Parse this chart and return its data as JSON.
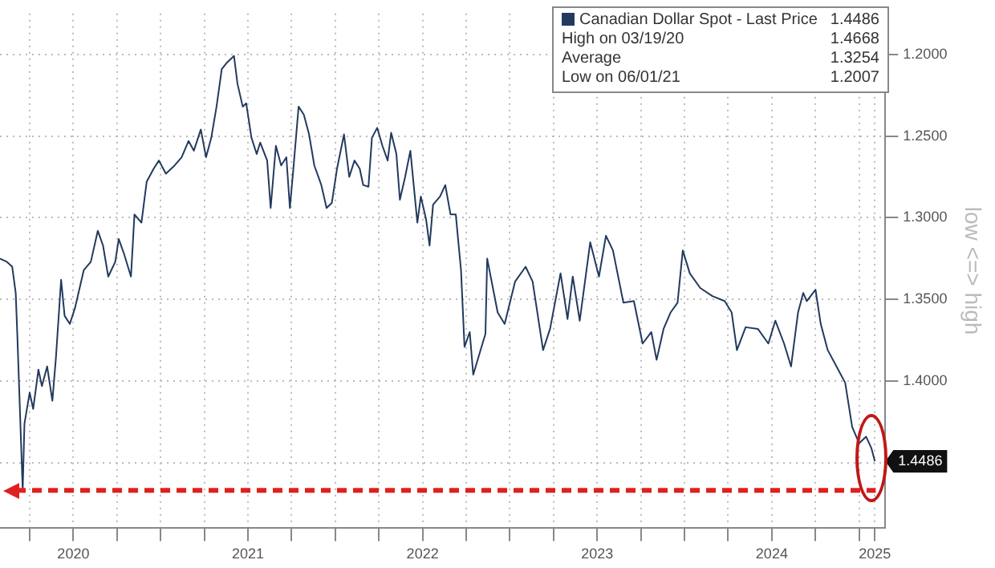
{
  "chart_data": {
    "type": "line",
    "ylabel": "low <=> high",
    "legend": "top right",
    "grid": true,
    "marker": "none",
    "line_style": "solid",
    "x": [
      2020.08,
      2020.12,
      2020.15,
      2020.17,
      2020.18,
      2020.21,
      2020.22,
      2020.25,
      2020.27,
      2020.3,
      2020.32,
      2020.35,
      2020.38,
      2020.4,
      2020.43,
      2020.45,
      2020.48,
      2020.51,
      2020.56,
      2020.6,
      2020.64,
      2020.67,
      2020.7,
      2020.74,
      2020.76,
      2020.79,
      2020.83,
      2020.85,
      2020.89,
      2020.92,
      2020.96,
      2020.99,
      2021.03,
      2021.08,
      2021.12,
      2021.16,
      2021.19,
      2021.23,
      2021.26,
      2021.29,
      2021.32,
      2021.35,
      2021.38,
      2021.42,
      2021.44,
      2021.47,
      2021.49,
      2021.52,
      2021.55,
      2021.57,
      2021.61,
      2021.63,
      2021.66,
      2021.69,
      2021.72,
      2021.74,
      2021.76,
      2021.79,
      2021.82,
      2021.85,
      2021.88,
      2021.92,
      2021.95,
      2021.98,
      2022.01,
      2022.05,
      2022.08,
      2022.11,
      2022.14,
      2022.16,
      2022.19,
      2022.21,
      2022.24,
      2022.27,
      2022.3,
      2022.32,
      2022.35,
      2022.37,
      2022.4,
      2022.43,
      2022.47,
      2022.49,
      2022.52,
      2022.54,
      2022.56,
      2022.6,
      2022.63,
      2022.66,
      2022.69,
      2022.72,
      2022.74,
      2022.77,
      2022.79,
      2022.86,
      2022.87,
      2022.93,
      2022.97,
      2023.03,
      2023.09,
      2023.13,
      2023.19,
      2023.23,
      2023.29,
      2023.33,
      2023.36,
      2023.4,
      2023.46,
      2023.51,
      2023.55,
      2023.59,
      2023.65,
      2023.71,
      2023.76,
      2023.81,
      2023.84,
      2023.88,
      2023.92,
      2023.96,
      2023.99,
      2024.03,
      2024.09,
      2024.16,
      2024.23,
      2024.27,
      2024.3,
      2024.35,
      2024.42,
      2024.48,
      2024.52,
      2024.57,
      2024.61,
      2024.65,
      2024.68,
      2024.7,
      2024.75,
      2024.78,
      2024.82,
      2024.88,
      2024.92,
      2024.96,
      2025.0,
      2025.04,
      2025.07,
      2025.09
    ],
    "series": [
      {
        "name": "Canadian Dollar Spot - Last Price",
        "color": "#233a5e",
        "values": [
          1.325,
          1.327,
          1.33,
          1.346,
          1.374,
          1.467,
          1.426,
          1.407,
          1.417,
          1.393,
          1.403,
          1.391,
          1.412,
          1.386,
          1.338,
          1.36,
          1.365,
          1.355,
          1.332,
          1.327,
          1.308,
          1.317,
          1.336,
          1.327,
          1.313,
          1.322,
          1.336,
          1.298,
          1.303,
          1.278,
          1.27,
          1.265,
          1.273,
          1.268,
          1.263,
          1.253,
          1.259,
          1.246,
          1.263,
          1.251,
          1.232,
          1.209,
          1.205,
          1.201,
          1.218,
          1.232,
          1.23,
          1.251,
          1.261,
          1.254,
          1.265,
          1.294,
          1.256,
          1.268,
          1.263,
          1.294,
          1.27,
          1.232,
          1.237,
          1.249,
          1.268,
          1.28,
          1.294,
          1.291,
          1.27,
          1.249,
          1.275,
          1.265,
          1.27,
          1.28,
          1.281,
          1.251,
          1.245,
          1.256,
          1.265,
          1.248,
          1.261,
          1.289,
          1.275,
          1.259,
          1.303,
          1.287,
          1.301,
          1.317,
          1.292,
          1.287,
          1.28,
          1.298,
          1.298,
          1.332,
          1.379,
          1.37,
          1.396,
          1.371,
          1.325,
          1.358,
          1.365,
          1.339,
          1.33,
          1.339,
          1.381,
          1.368,
          1.334,
          1.362,
          1.336,
          1.363,
          1.315,
          1.336,
          1.311,
          1.32,
          1.352,
          1.351,
          1.377,
          1.37,
          1.387,
          1.368,
          1.358,
          1.352,
          1.32,
          1.334,
          1.343,
          1.348,
          1.351,
          1.358,
          1.381,
          1.367,
          1.368,
          1.377,
          1.363,
          1.377,
          1.391,
          1.358,
          1.346,
          1.351,
          1.344,
          1.365,
          1.381,
          1.393,
          1.401,
          1.428,
          1.438,
          1.434,
          1.441,
          1.449
        ]
      }
    ],
    "xlim": [
      2020.08,
      2025.15
    ],
    "xticks": [
      {
        "value": 2020.25,
        "label": null
      },
      {
        "value": 2020.5,
        "label": "2020"
      },
      {
        "value": 2020.75,
        "label": null
      },
      {
        "value": 2021,
        "label": null
      },
      {
        "value": 2021.25,
        "label": null
      },
      {
        "value": 2021.5,
        "label": "2021"
      },
      {
        "value": 2021.75,
        "label": null
      },
      {
        "value": 2022,
        "label": null
      },
      {
        "value": 2022.25,
        "label": null
      },
      {
        "value": 2022.5,
        "label": "2022"
      },
      {
        "value": 2022.75,
        "label": null
      },
      {
        "value": 2023,
        "label": null
      },
      {
        "value": 2023.25,
        "label": null
      },
      {
        "value": 2023.5,
        "label": "2023"
      },
      {
        "value": 2023.75,
        "label": null
      },
      {
        "value": 2024,
        "label": null
      },
      {
        "value": 2024.25,
        "label": null
      },
      {
        "value": 2024.5,
        "label": "2024"
      },
      {
        "value": 2024.75,
        "label": null
      },
      {
        "value": 2025,
        "label": null
      },
      {
        "value": 2025.09,
        "label": "2025"
      }
    ],
    "ylim": [
      1.49,
      1.175
    ],
    "yticks": [
      {
        "value": 1.2,
        "label": "1.2000"
      },
      {
        "value": 1.25,
        "label": "1.2500"
      },
      {
        "value": 1.3,
        "label": "1.3000"
      },
      {
        "value": 1.35,
        "label": "1.3500"
      },
      {
        "value": 1.4,
        "label": "1.4000"
      },
      {
        "value": 1.45,
        "label": null
      }
    ],
    "ref_lines": [
      {
        "axis": "y",
        "value": 1.4668,
        "color": "#e02020",
        "line_style": "dashed"
      }
    ],
    "annotations": [
      "1.4486",
      "High on 03/19/20 1.4668",
      "Average 1.3254",
      "Low on 06/01/21 1.2007"
    ]
  }
}
